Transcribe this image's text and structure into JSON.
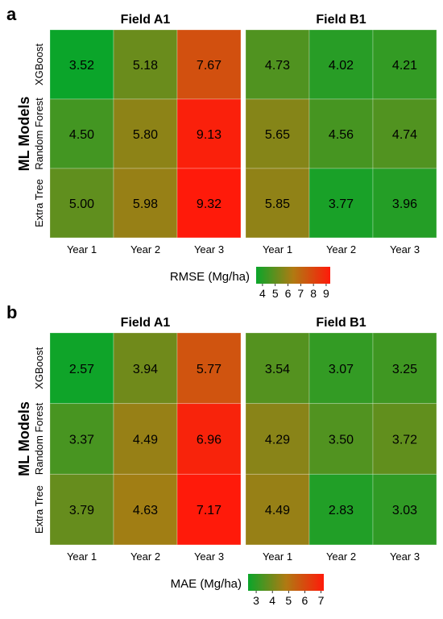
{
  "chart_data": [
    {
      "panel_label": "a",
      "type": "heatmap",
      "ylabel": "ML Models",
      "rows": [
        "XGBoost",
        "Random Forest",
        "Extra Tree"
      ],
      "columns": [
        "Year 1",
        "Year 2",
        "Year 3"
      ],
      "fields": [
        {
          "name": "Field A1",
          "values": [
            [
              3.52,
              5.18,
              7.67
            ],
            [
              4.5,
              5.8,
              9.13
            ],
            [
              5.0,
              5.98,
              9.32
            ]
          ]
        },
        {
          "name": "Field B1",
          "values": [
            [
              4.73,
              4.02,
              4.21
            ],
            [
              5.65,
              4.56,
              4.74
            ],
            [
              5.85,
              3.77,
              3.96
            ]
          ]
        }
      ],
      "colorbar": {
        "label": "RMSE (Mg/ha)",
        "ticks": [
          4,
          5,
          6,
          7,
          8,
          9
        ],
        "range": [
          3.5,
          9.32
        ]
      }
    },
    {
      "panel_label": "b",
      "type": "heatmap",
      "ylabel": "ML Models",
      "rows": [
        "XGBoost",
        "Random Forest",
        "Extra Tree"
      ],
      "columns": [
        "Year 1",
        "Year 2",
        "Year 3"
      ],
      "fields": [
        {
          "name": "Field A1",
          "values": [
            [
              2.57,
              3.94,
              5.77
            ],
            [
              3.37,
              4.49,
              6.96
            ],
            [
              3.79,
              4.63,
              7.17
            ]
          ]
        },
        {
          "name": "Field B1",
          "values": [
            [
              3.54,
              3.07,
              3.25
            ],
            [
              4.29,
              3.5,
              3.72
            ],
            [
              4.49,
              2.83,
              3.03
            ]
          ]
        }
      ],
      "colorbar": {
        "label": "MAE (Mg/ha)",
        "ticks": [
          3,
          4,
          5,
          6,
          7
        ],
        "range": [
          2.5,
          7.17
        ]
      }
    }
  ],
  "colors": {
    "low": "#0aa52a",
    "mid": "#b07a12",
    "high": "#ff1a0a"
  }
}
